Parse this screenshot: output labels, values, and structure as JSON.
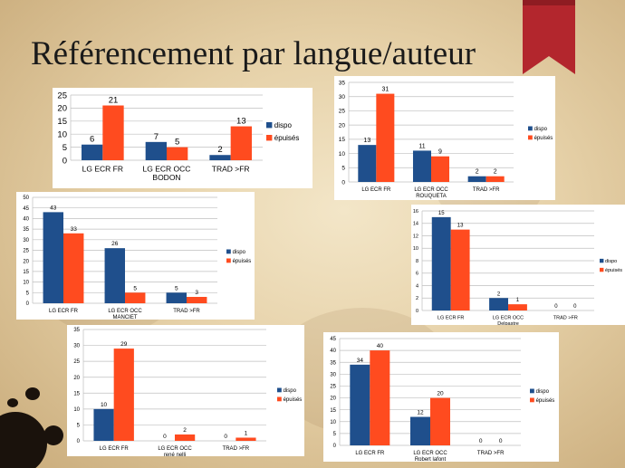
{
  "slide": {
    "title": "Référencement par langue/auteur"
  },
  "colors": {
    "dispo": "#1f4f8c",
    "epuises": "#ff4b1f",
    "grid": "#bfbfbf",
    "ribbon": "#b3262d"
  },
  "chart_data": [
    {
      "type": "bar",
      "categories": [
        "LG ECR FR",
        "LG ECR OCC BODON",
        "TRAD >FR"
      ],
      "series": [
        {
          "name": "dispo",
          "values": [
            6,
            7,
            2
          ]
        },
        {
          "name": "épuisés",
          "values": [
            21,
            5,
            13
          ]
        }
      ],
      "ylim": [
        0,
        25
      ],
      "yticks": [
        0,
        5,
        10,
        15,
        20,
        25
      ],
      "grid": true,
      "legend": "right"
    },
    {
      "type": "bar",
      "categories": [
        "LG ECR FR",
        "LG ECR OCC ROUQUETA",
        "TRAD >FR"
      ],
      "series": [
        {
          "name": "dispo",
          "values": [
            13,
            11,
            2
          ]
        },
        {
          "name": "épuisés",
          "values": [
            31,
            9,
            2
          ]
        }
      ],
      "ylim": [
        0,
        35
      ],
      "yticks": [
        0,
        5,
        10,
        15,
        20,
        25,
        30,
        35
      ],
      "grid": true,
      "legend": "right"
    },
    {
      "type": "bar",
      "categories": [
        "LG ECR FR",
        "LG ECR OCC MANCIET",
        "TRAD >FR"
      ],
      "series": [
        {
          "name": "dispo",
          "values": [
            43,
            26,
            5
          ]
        },
        {
          "name": "épuisés",
          "values": [
            33,
            5,
            3
          ]
        }
      ],
      "ylim": [
        0,
        50
      ],
      "yticks": [
        0,
        5,
        10,
        15,
        20,
        25,
        30,
        35,
        40,
        45,
        50
      ],
      "grid": true,
      "legend": "right"
    },
    {
      "type": "bar",
      "categories": [
        "LG ECR FR",
        "LG ECR OCC Delpastre",
        "TRAD >FR"
      ],
      "series": [
        {
          "name": "dispo",
          "values": [
            15,
            2,
            0
          ]
        },
        {
          "name": "épuisés",
          "values": [
            13,
            1,
            0
          ]
        }
      ],
      "ylim": [
        0,
        16
      ],
      "yticks": [
        0,
        2,
        4,
        6,
        8,
        10,
        12,
        14,
        16
      ],
      "grid": true,
      "legend": "right"
    },
    {
      "type": "bar",
      "categories": [
        "LG ECR FR",
        "LG ECR OCC rené nelli",
        "TRAD >FR"
      ],
      "series": [
        {
          "name": "dispo",
          "values": [
            10,
            0,
            0
          ]
        },
        {
          "name": "épuisés",
          "values": [
            29,
            2,
            1
          ]
        }
      ],
      "ylim": [
        0,
        35
      ],
      "yticks": [
        0,
        5,
        10,
        15,
        20,
        25,
        30,
        35
      ],
      "grid": true,
      "legend": "right"
    },
    {
      "type": "bar",
      "categories": [
        "LG ECR FR",
        "LG ECR OCC Robert lafont",
        "TRAD >FR"
      ],
      "series": [
        {
          "name": "dispo",
          "values": [
            34,
            12,
            0
          ]
        },
        {
          "name": "épuisés",
          "values": [
            40,
            20,
            0
          ]
        }
      ],
      "ylim": [
        0,
        45
      ],
      "yticks": [
        0,
        5,
        10,
        15,
        20,
        25,
        30,
        35,
        40,
        45
      ],
      "grid": true,
      "legend": "right"
    }
  ]
}
